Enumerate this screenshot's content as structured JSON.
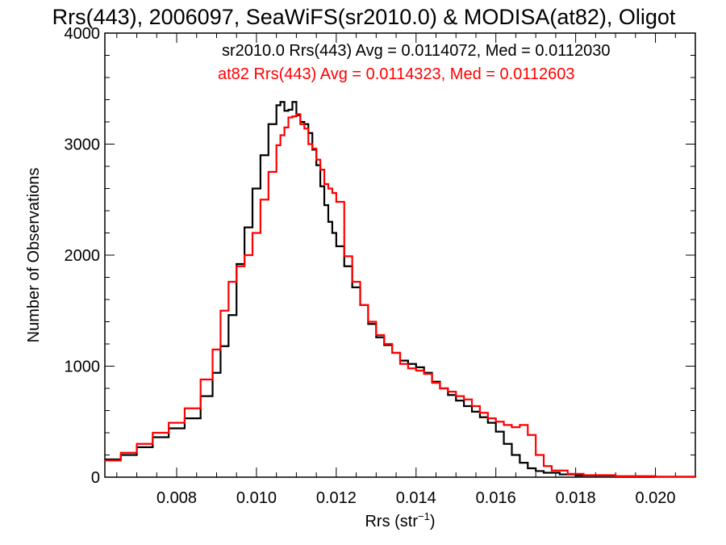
{
  "chart_data": {
    "type": "line",
    "title": "Rrs(443), 2006097, SeaWiFS(sr2010.0) & MODISA(at82), Oligot",
    "xlabel": "Rrs (str",
    "xlabel_sup": "−1",
    "xlabel_end": ")",
    "ylabel": "Number of Observations",
    "xlim": [
      0.0062,
      0.021
    ],
    "ylim": [
      0,
      4000
    ],
    "xticks": [
      0.008,
      0.01,
      0.012,
      0.014,
      0.016,
      0.018,
      0.02
    ],
    "xtick_labels": [
      "0.008",
      "0.010",
      "0.012",
      "0.014",
      "0.016",
      "0.018",
      "0.020"
    ],
    "yticks": [
      0,
      1000,
      2000,
      3000,
      4000
    ],
    "ytick_labels": [
      "0",
      "1000",
      "2000",
      "3000",
      "4000"
    ],
    "grid": false,
    "legend_position": "top-right",
    "series": [
      {
        "name": "sr2010.0 Rrs(443) Avg = 0.0114072, Med = 0.0112030",
        "color": "#000000",
        "points": [
          [
            0.0062,
            160
          ],
          [
            0.0066,
            200
          ],
          [
            0.007,
            270
          ],
          [
            0.0074,
            360
          ],
          [
            0.0078,
            440
          ],
          [
            0.0082,
            530
          ],
          [
            0.0086,
            730
          ],
          [
            0.0089,
            940
          ],
          [
            0.0091,
            1180
          ],
          [
            0.0093,
            1460
          ],
          [
            0.0095,
            1920
          ],
          [
            0.0097,
            2250
          ],
          [
            0.0099,
            2600
          ],
          [
            0.0101,
            2900
          ],
          [
            0.0103,
            3180
          ],
          [
            0.0105,
            3350
          ],
          [
            0.0106,
            3380
          ],
          [
            0.0107,
            3300
          ],
          [
            0.0108,
            3310
          ],
          [
            0.0109,
            3380
          ],
          [
            0.011,
            3260
          ],
          [
            0.0111,
            3200
          ],
          [
            0.0112,
            3180
          ],
          [
            0.0113,
            3100
          ],
          [
            0.0114,
            2950
          ],
          [
            0.0115,
            2810
          ],
          [
            0.0116,
            2620
          ],
          [
            0.0117,
            2450
          ],
          [
            0.0118,
            2300
          ],
          [
            0.0119,
            2200
          ],
          [
            0.012,
            2080
          ],
          [
            0.0122,
            1900
          ],
          [
            0.0124,
            1710
          ],
          [
            0.0126,
            1550
          ],
          [
            0.0128,
            1380
          ],
          [
            0.013,
            1260
          ],
          [
            0.0132,
            1190
          ],
          [
            0.0134,
            1120
          ],
          [
            0.0136,
            1050
          ],
          [
            0.0138,
            1020
          ],
          [
            0.014,
            990
          ],
          [
            0.0142,
            940
          ],
          [
            0.0144,
            860
          ],
          [
            0.0146,
            800
          ],
          [
            0.0148,
            740
          ],
          [
            0.015,
            690
          ],
          [
            0.0152,
            640
          ],
          [
            0.0154,
            590
          ],
          [
            0.0156,
            540
          ],
          [
            0.0158,
            490
          ],
          [
            0.016,
            410
          ],
          [
            0.0162,
            300
          ],
          [
            0.0164,
            200
          ],
          [
            0.0166,
            130
          ],
          [
            0.0168,
            80
          ],
          [
            0.017,
            55
          ],
          [
            0.0172,
            40
          ],
          [
            0.0176,
            25
          ],
          [
            0.018,
            15
          ],
          [
            0.019,
            8
          ],
          [
            0.02,
            4
          ],
          [
            0.021,
            2
          ]
        ]
      },
      {
        "name": "at82 Rrs(443) Avg = 0.0114323, Med = 0.0112603",
        "color": "#ff0000",
        "points": [
          [
            0.0062,
            150
          ],
          [
            0.0066,
            220
          ],
          [
            0.007,
            300
          ],
          [
            0.0074,
            400
          ],
          [
            0.0078,
            490
          ],
          [
            0.0082,
            620
          ],
          [
            0.0086,
            880
          ],
          [
            0.0089,
            1150
          ],
          [
            0.0091,
            1500
          ],
          [
            0.0093,
            1760
          ],
          [
            0.0095,
            1900
          ],
          [
            0.0097,
            2000
          ],
          [
            0.0099,
            2200
          ],
          [
            0.0101,
            2500
          ],
          [
            0.0103,
            2750
          ],
          [
            0.0105,
            2990
          ],
          [
            0.0106,
            3080
          ],
          [
            0.0107,
            3150
          ],
          [
            0.0108,
            3240
          ],
          [
            0.0109,
            3250
          ],
          [
            0.011,
            3270
          ],
          [
            0.0111,
            3180
          ],
          [
            0.0112,
            3140
          ],
          [
            0.0113,
            3000
          ],
          [
            0.0114,
            2960
          ],
          [
            0.0115,
            2860
          ],
          [
            0.0116,
            2770
          ],
          [
            0.0117,
            2640
          ],
          [
            0.0118,
            2600
          ],
          [
            0.0119,
            2560
          ],
          [
            0.012,
            2480
          ],
          [
            0.0122,
            1990
          ],
          [
            0.0124,
            1760
          ],
          [
            0.0126,
            1550
          ],
          [
            0.0128,
            1400
          ],
          [
            0.013,
            1280
          ],
          [
            0.0132,
            1200
          ],
          [
            0.0134,
            1120
          ],
          [
            0.0136,
            1020
          ],
          [
            0.0138,
            980
          ],
          [
            0.014,
            960
          ],
          [
            0.0142,
            930
          ],
          [
            0.0144,
            850
          ],
          [
            0.0146,
            800
          ],
          [
            0.0148,
            770
          ],
          [
            0.015,
            730
          ],
          [
            0.0152,
            700
          ],
          [
            0.0154,
            640
          ],
          [
            0.0156,
            580
          ],
          [
            0.0158,
            530
          ],
          [
            0.016,
            500
          ],
          [
            0.0162,
            470
          ],
          [
            0.0164,
            450
          ],
          [
            0.0166,
            470
          ],
          [
            0.0168,
            380
          ],
          [
            0.017,
            200
          ],
          [
            0.0172,
            100
          ],
          [
            0.0174,
            60
          ],
          [
            0.0178,
            30
          ],
          [
            0.0182,
            18
          ],
          [
            0.019,
            8
          ],
          [
            0.02,
            4
          ],
          [
            0.021,
            2
          ]
        ]
      }
    ]
  }
}
